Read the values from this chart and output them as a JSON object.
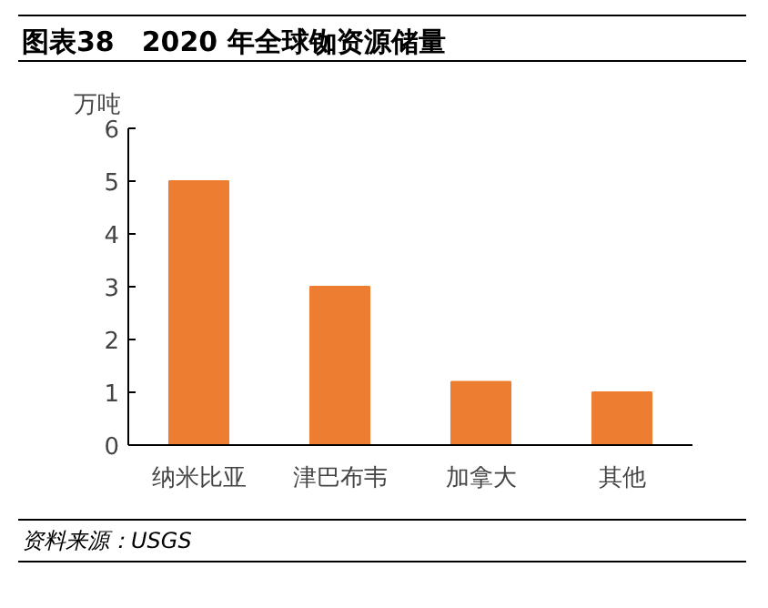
{
  "chart_data": {
    "type": "bar",
    "title": "图表38　2020 年全球铷资源储量",
    "ylabel": "万吨",
    "categories": [
      "纳米比亚",
      "津巴布韦",
      "加拿大",
      "其他"
    ],
    "values": [
      5,
      3,
      1.2,
      1.0
    ],
    "color": "#ed7d31",
    "ylim": [
      0,
      6
    ],
    "yticks": [
      0,
      1,
      2,
      3,
      4,
      5,
      6
    ],
    "grid": false,
    "annotations": [
      "资料来源：USGS"
    ]
  }
}
